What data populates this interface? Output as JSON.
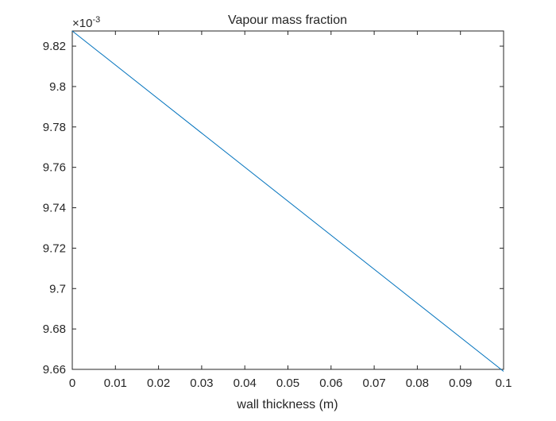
{
  "chart_data": {
    "type": "line",
    "title": "Vapour mass fraction",
    "xlabel": "wall thickness (m)",
    "ylabel": "",
    "xlim": [
      0,
      0.1
    ],
    "ylim": [
      9.66,
      9.8275
    ],
    "y_exponent_label": "×10",
    "y_exponent_power": "-3",
    "x_ticks": [
      0,
      0.01,
      0.02,
      0.03,
      0.04,
      0.05,
      0.06,
      0.07,
      0.08,
      0.09,
      0.1
    ],
    "x_tick_labels": [
      "0",
      "0.01",
      "0.02",
      "0.03",
      "0.04",
      "0.05",
      "0.06",
      "0.07",
      "0.08",
      "0.09",
      "0.1"
    ],
    "y_ticks": [
      9.66,
      9.68,
      9.7,
      9.72,
      9.74,
      9.76,
      9.78,
      9.8,
      9.82
    ],
    "y_tick_labels": [
      "9.66",
      "9.68",
      "9.7",
      "9.72",
      "9.74",
      "9.76",
      "9.78",
      "9.8",
      "9.82"
    ],
    "grid": false,
    "box": true,
    "series": [
      {
        "color": "#0072bd",
        "x": [
          0,
          0.1
        ],
        "y": [
          9.8275,
          9.659
        ]
      }
    ]
  }
}
